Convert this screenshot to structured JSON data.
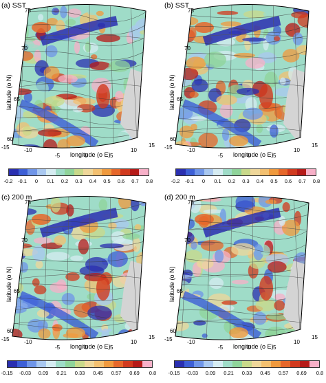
{
  "panels": [
    {
      "id": "a",
      "title": "(a) SST",
      "lat_ticks": [
        "75",
        "70",
        "65",
        "60"
      ],
      "lon_ticks": [
        "-15",
        "-10",
        "-5",
        "0",
        "5",
        "10",
        "15"
      ],
      "ylabel": "latitude (o N)",
      "xlabel": "longitude (o E)",
      "colorbar": [
        "-0.2",
        "-0.1",
        "0",
        "0.1",
        "0.2",
        "0.3",
        "0.4",
        "0.5",
        "0.6",
        "0.7",
        "0.8"
      ]
    },
    {
      "id": "b",
      "title": "(b) SST",
      "lat_ticks": [
        "75",
        "70",
        "65",
        "60"
      ],
      "lon_ticks": [
        "-15",
        "-10",
        "-5",
        "0",
        "5",
        "10",
        "15"
      ],
      "ylabel": "latitude (o N)",
      "xlabel": "longitude (o E)",
      "colorbar": [
        "-0.2",
        "-0.1",
        "0",
        "0.1",
        "0.2",
        "0.3",
        "0.4",
        "0.5",
        "0.6",
        "0.7",
        "0.8"
      ]
    },
    {
      "id": "c",
      "title": "(c) 200 m",
      "lat_ticks": [
        "75",
        "70",
        "65",
        "60"
      ],
      "lon_ticks": [
        "-15",
        "-10",
        "-5",
        "0",
        "5",
        "10",
        "15"
      ],
      "ylabel": "latitude (o N)",
      "xlabel": "longitude (o E)",
      "colorbar": [
        "-0.15",
        "-0.03",
        "0.09",
        "0.21",
        "0.33",
        "0.45",
        "0.57",
        "0.69",
        "0.8"
      ]
    },
    {
      "id": "d",
      "title": "(d) 200 m",
      "lat_ticks": [
        "75",
        "70",
        "65",
        "60"
      ],
      "lon_ticks": [
        "-15",
        "-10",
        "-5",
        "0",
        "5",
        "10",
        "15"
      ],
      "ylabel": "latitude (o N)",
      "xlabel": "longitude (o E)",
      "colorbar": [
        "-0.15",
        "-0.03",
        "0.09",
        "0.21",
        "0.33",
        "0.45",
        "0.57",
        "0.69",
        "0.8"
      ]
    }
  ],
  "colors": {
    "scale": [
      "#2a2fb0",
      "#3d5fd6",
      "#6f95e8",
      "#a9c8f0",
      "#d6ecf2",
      "#9fdcc8",
      "#8fd49a",
      "#c9d98a",
      "#efd79a",
      "#f3c070",
      "#f09a3e",
      "#e6672a",
      "#d13a1e",
      "#b51a18",
      "#f7b0c8"
    ],
    "land": "#d4d4d4",
    "contour": "#333333"
  }
}
